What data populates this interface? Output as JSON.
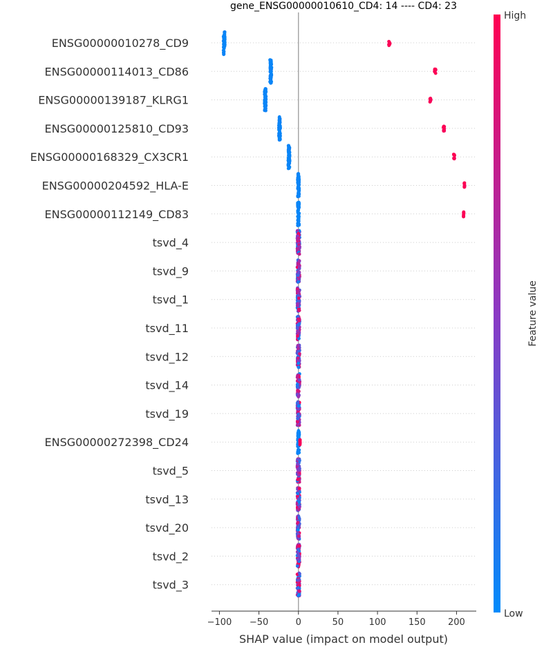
{
  "chart_data": {
    "type": "scatter",
    "subtype": "beeswarm",
    "title": "gene_ENSG00000010610_CD4: 14 ---- CD4: 23",
    "xlabel": "SHAP value (impact on model output)",
    "xlim": [
      -110,
      225
    ],
    "xticks": [
      -100,
      -50,
      0,
      50,
      100,
      150,
      200
    ],
    "xtick_labels": [
      "−100",
      "−50",
      "0",
      "50",
      "100",
      "150",
      "200"
    ],
    "colorbar": {
      "label": "Feature value",
      "high_label": "High",
      "low_label": "Low",
      "low_color": "#008bfb",
      "mid_color": "#8b39c4",
      "high_color": "#ff0052"
    },
    "grid": "horizontal-dotted",
    "features": [
      {
        "name": "ENSG00000010278_CD9",
        "type": "bimodal",
        "low_x": -94,
        "high_x": 115,
        "low_spread": 2.0,
        "high_spread": 2.0
      },
      {
        "name": "ENSG00000114013_CD86",
        "type": "bimodal",
        "low_x": -35,
        "high_x": 173,
        "low_spread": 2.0,
        "high_spread": 1.6
      },
      {
        "name": "ENSG00000139187_KLRG1",
        "type": "bimodal",
        "low_x": -42,
        "high_x": 167,
        "low_spread": 2.0,
        "high_spread": 1.6
      },
      {
        "name": "ENSG00000125810_CD93",
        "type": "bimodal",
        "low_x": -24,
        "high_x": 184,
        "low_spread": 2.0,
        "high_spread": 1.4
      },
      {
        "name": "ENSG00000168329_CX3CR1",
        "type": "bimodal",
        "low_x": -12,
        "high_x": 197,
        "low_spread": 2.0,
        "high_spread": 1.2
      },
      {
        "name": "ENSG00000204592_HLA-E",
        "type": "bimodal",
        "low_x": 0,
        "high_x": 210,
        "low_spread": 2.0,
        "high_spread": 0.4
      },
      {
        "name": "ENSG00000112149_CD83",
        "type": "bimodal",
        "low_x": 0,
        "high_x": 209,
        "low_spread": 2.0,
        "high_spread": 0.4
      },
      {
        "name": "tsvd_4",
        "type": "cluster",
        "center": 0,
        "range": 3
      },
      {
        "name": "tsvd_9",
        "type": "cluster",
        "center": 0,
        "range": 3
      },
      {
        "name": "tsvd_1",
        "type": "cluster",
        "center": 0,
        "range": 3
      },
      {
        "name": "tsvd_11",
        "type": "cluster",
        "center": 0,
        "range": 3
      },
      {
        "name": "tsvd_12",
        "type": "cluster",
        "center": 0,
        "range": 3
      },
      {
        "name": "tsvd_14",
        "type": "cluster",
        "center": 0,
        "range": 3
      },
      {
        "name": "tsvd_19",
        "type": "cluster",
        "center": 0,
        "range": 3
      },
      {
        "name": "ENSG00000272398_CD24",
        "type": "bimodal",
        "low_x": 0,
        "high_x": 2,
        "low_spread": 2.0,
        "high_spread": 0.3
      },
      {
        "name": "tsvd_5",
        "type": "cluster",
        "center": 0,
        "range": 3
      },
      {
        "name": "tsvd_13",
        "type": "cluster",
        "center": 0,
        "range": 3
      },
      {
        "name": "tsvd_20",
        "type": "cluster",
        "center": 0,
        "range": 3
      },
      {
        "name": "tsvd_2",
        "type": "cluster",
        "center": 0,
        "range": 3
      },
      {
        "name": "tsvd_3",
        "type": "cluster",
        "center": 0,
        "range": 3
      }
    ]
  }
}
